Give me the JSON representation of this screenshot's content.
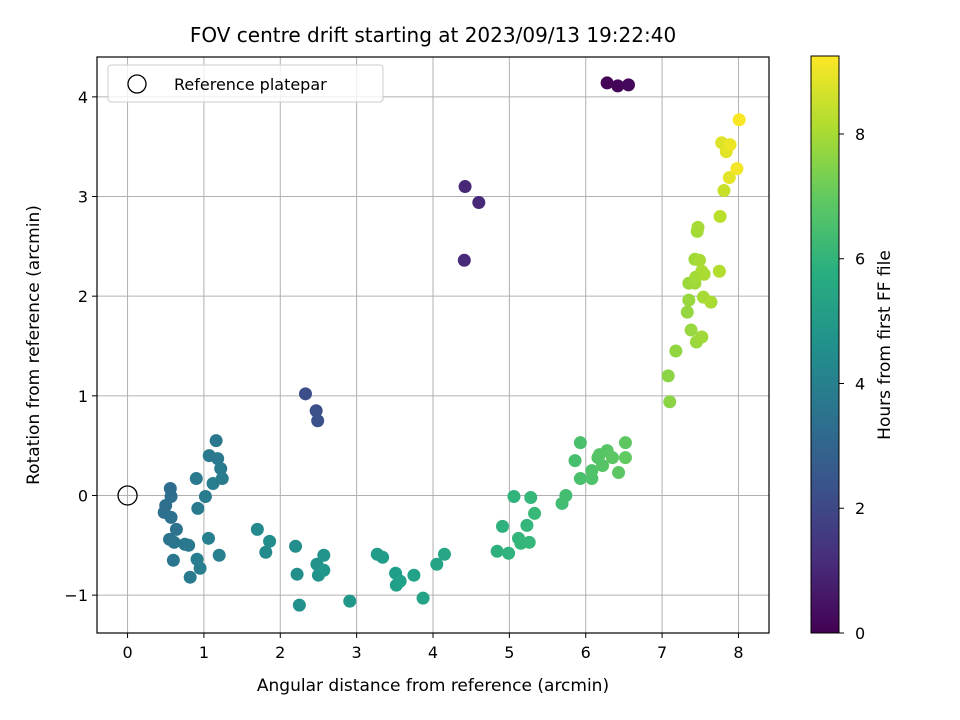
{
  "chart_data": {
    "type": "scatter",
    "title": "FOV centre drift starting at 2023/09/13 19:22:40",
    "xlabel": "Angular distance from reference (arcmin)",
    "ylabel": "Rotation from reference (arcmin)",
    "xlim": [
      -0.4,
      8.4
    ],
    "ylim": [
      -1.38,
      4.4
    ],
    "xticks": [
      "0",
      "1",
      "2",
      "3",
      "4",
      "5",
      "6",
      "7",
      "8"
    ],
    "yticks": [
      "−1",
      "0",
      "1",
      "2",
      "3",
      "4"
    ],
    "grid": true,
    "legend": {
      "position": "top-left",
      "entries": [
        "Reference platepar"
      ]
    },
    "reference_point": {
      "x": 0,
      "y": 0
    },
    "colorbar": {
      "label": "Hours from first FF file",
      "min": 0,
      "max": 9.25,
      "ticks": [
        "0",
        "2",
        "4",
        "6",
        "8"
      ],
      "colormap": "viridis"
    },
    "points": [
      [
        6.28,
        4.14,
        0.05
      ],
      [
        6.42,
        4.11,
        0.1
      ],
      [
        6.56,
        4.12,
        0.15
      ],
      [
        4.42,
        3.1,
        1.0
      ],
      [
        4.6,
        2.94,
        1.05
      ],
      [
        4.41,
        2.36,
        1.1
      ],
      [
        2.33,
        1.02,
        2.2
      ],
      [
        2.47,
        0.85,
        2.25
      ],
      [
        2.49,
        0.75,
        2.3
      ],
      [
        0.56,
        0.07,
        3.3
      ],
      [
        0.5,
        -0.1,
        3.35
      ],
      [
        0.48,
        -0.17,
        3.4
      ],
      [
        0.57,
        -0.01,
        3.35
      ],
      [
        0.57,
        -0.22,
        3.45
      ],
      [
        0.64,
        -0.34,
        3.5
      ],
      [
        0.55,
        -0.44,
        3.55
      ],
      [
        0.61,
        -0.47,
        3.6
      ],
      [
        0.6,
        -0.65,
        3.65
      ],
      [
        0.75,
        -0.49,
        3.7
      ],
      [
        0.8,
        -0.5,
        3.75
      ],
      [
        0.82,
        -0.82,
        3.8
      ],
      [
        0.9,
        0.17,
        3.75
      ],
      [
        0.92,
        -0.13,
        3.8
      ],
      [
        0.91,
        -0.64,
        3.9
      ],
      [
        0.95,
        -0.73,
        3.95
      ],
      [
        1.02,
        -0.01,
        3.85
      ],
      [
        1.07,
        0.4,
        3.75
      ],
      [
        1.16,
        0.55,
        3.7
      ],
      [
        1.18,
        0.37,
        3.75
      ],
      [
        1.12,
        0.12,
        3.9
      ],
      [
        1.22,
        0.27,
        3.8
      ],
      [
        1.24,
        0.17,
        3.85
      ],
      [
        1.06,
        -0.43,
        4.0
      ],
      [
        1.2,
        -0.6,
        4.05
      ],
      [
        1.7,
        -0.34,
        4.4
      ],
      [
        1.81,
        -0.57,
        4.45
      ],
      [
        1.86,
        -0.46,
        4.5
      ],
      [
        2.2,
        -0.51,
        4.55
      ],
      [
        2.22,
        -0.79,
        4.6
      ],
      [
        2.25,
        -1.1,
        4.65
      ],
      [
        2.48,
        -0.69,
        4.7
      ],
      [
        2.5,
        -0.8,
        4.75
      ],
      [
        2.57,
        -0.6,
        4.8
      ],
      [
        2.57,
        -0.75,
        4.85
      ],
      [
        2.91,
        -1.06,
        4.9
      ],
      [
        3.27,
        -0.59,
        5.05
      ],
      [
        3.34,
        -0.62,
        5.1
      ],
      [
        3.51,
        -0.78,
        5.15
      ],
      [
        3.52,
        -0.9,
        5.2
      ],
      [
        3.57,
        -0.86,
        5.25
      ],
      [
        3.75,
        -0.8,
        5.3
      ],
      [
        3.87,
        -1.03,
        5.35
      ],
      [
        4.05,
        -0.69,
        5.4
      ],
      [
        4.15,
        -0.59,
        5.45
      ],
      [
        4.84,
        -0.56,
        5.85
      ],
      [
        4.91,
        -0.31,
        5.9
      ],
      [
        4.99,
        -0.58,
        5.95
      ],
      [
        5.06,
        -0.01,
        6.0
      ],
      [
        5.12,
        -0.43,
        6.05
      ],
      [
        5.15,
        -0.48,
        6.1
      ],
      [
        5.23,
        -0.3,
        6.1
      ],
      [
        5.26,
        -0.47,
        6.15
      ],
      [
        5.28,
        -0.02,
        6.15
      ],
      [
        5.33,
        -0.18,
        6.2
      ],
      [
        5.69,
        -0.08,
        6.4
      ],
      [
        5.74,
        0.0,
        6.45
      ],
      [
        5.86,
        0.35,
        6.5
      ],
      [
        5.93,
        0.53,
        6.55
      ],
      [
        5.93,
        0.17,
        6.55
      ],
      [
        6.08,
        0.17,
        6.6
      ],
      [
        6.08,
        0.25,
        6.65
      ],
      [
        6.16,
        0.38,
        6.7
      ],
      [
        6.18,
        0.41,
        6.75
      ],
      [
        6.22,
        0.3,
        6.75
      ],
      [
        6.28,
        0.45,
        6.8
      ],
      [
        6.35,
        0.38,
        6.85
      ],
      [
        6.43,
        0.23,
        6.85
      ],
      [
        6.52,
        0.53,
        6.9
      ],
      [
        6.52,
        0.38,
        6.95
      ],
      [
        7.08,
        1.2,
        7.6
      ],
      [
        7.1,
        0.94,
        7.6
      ],
      [
        7.18,
        1.45,
        7.7
      ],
      [
        7.33,
        1.84,
        7.75
      ],
      [
        7.35,
        1.96,
        7.8
      ],
      [
        7.35,
        2.13,
        7.85
      ],
      [
        7.38,
        1.66,
        7.8
      ],
      [
        7.43,
        2.37,
        7.9
      ],
      [
        7.43,
        2.13,
        7.9
      ],
      [
        7.44,
        2.19,
        7.95
      ],
      [
        7.45,
        1.54,
        7.85
      ],
      [
        7.46,
        2.65,
        7.95
      ],
      [
        7.47,
        2.69,
        8.0
      ],
      [
        7.49,
        2.36,
        8.0
      ],
      [
        7.52,
        2.25,
        8.05
      ],
      [
        7.55,
        2.22,
        8.05
      ],
      [
        7.52,
        1.59,
        7.9
      ],
      [
        7.54,
        1.99,
        8.0
      ],
      [
        7.64,
        1.94,
        8.05
      ],
      [
        7.75,
        2.25,
        8.15
      ],
      [
        7.76,
        2.8,
        8.3
      ],
      [
        7.78,
        3.54,
        8.8
      ],
      [
        7.81,
        3.06,
        8.5
      ],
      [
        7.84,
        3.45,
        8.85
      ],
      [
        7.88,
        3.19,
        8.9
      ],
      [
        7.89,
        3.52,
        9.0
      ],
      [
        7.98,
        3.28,
        9.1
      ],
      [
        8.01,
        3.77,
        9.2
      ]
    ]
  }
}
